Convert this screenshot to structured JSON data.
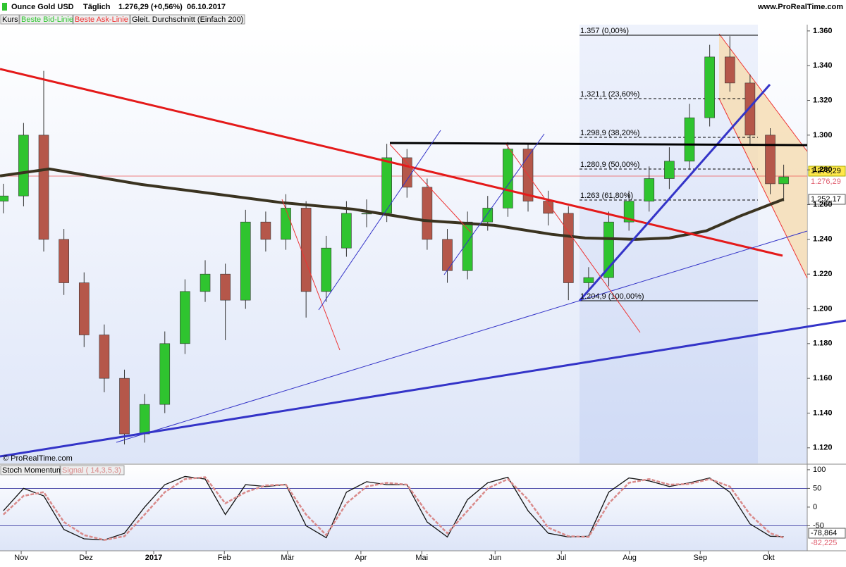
{
  "header": {
    "title": "Ounce Gold USD",
    "period": "Täglich",
    "quote": "1.276,29 (+0,56%)",
    "date": "06.10.2017",
    "site": "www.ProRealTime.com",
    "copyright": "© ProRealTime.com"
  },
  "chart_data": [
    {
      "type": "candlestick",
      "legend": [
        "Kurs",
        "Beste Bid-Linie",
        "Beste Ask-Linie"
      ],
      "xlim": [
        0,
        240
      ],
      "ylim": [
        1.111,
        1.3636
      ],
      "yticks": [
        {
          "value": 1.12,
          "label": "1.120"
        },
        {
          "value": 1.14,
          "label": "1.140"
        },
        {
          "value": 1.16,
          "label": "1.160"
        },
        {
          "value": 1.18,
          "label": "1.180"
        },
        {
          "value": 1.2,
          "label": "1.200"
        },
        {
          "value": 1.22,
          "label": "1.220"
        },
        {
          "value": 1.24,
          "label": "1.240"
        },
        {
          "value": 1.26,
          "label": "1.260"
        },
        {
          "value": 1.28,
          "label": "1.280"
        },
        {
          "value": 1.3,
          "label": "1.300"
        },
        {
          "value": 1.32,
          "label": "1.320"
        },
        {
          "value": 1.34,
          "label": "1.340"
        },
        {
          "value": 1.36,
          "label": "1.360"
        }
      ],
      "up_color": "#2fc42f",
      "down_color": "#b5574a",
      "candles": {
        "x": [
          1,
          7,
          13,
          19,
          25,
          31,
          37,
          43,
          49,
          55,
          61,
          67,
          73,
          79,
          85,
          91,
          97,
          103,
          109,
          115,
          121,
          127,
          133,
          139,
          145,
          151,
          157,
          163,
          169,
          175,
          181,
          187,
          193,
          199,
          205,
          211,
          217,
          223,
          229,
          233
        ],
        "open": [
          1.262,
          1.265,
          1.3,
          1.24,
          1.215,
          1.185,
          1.16,
          1.128,
          1.145,
          1.18,
          1.21,
          1.22,
          1.205,
          1.25,
          1.24,
          1.258,
          1.21,
          1.235,
          1.255,
          1.255,
          1.287,
          1.27,
          1.24,
          1.222,
          1.25,
          1.258,
          1.292,
          1.262,
          1.255,
          1.215,
          1.218,
          1.25,
          1.262,
          1.275,
          1.285,
          1.31,
          1.345,
          1.33,
          1.3,
          1.272
        ],
        "high": [
          1.272,
          1.307,
          1.337,
          1.246,
          1.221,
          1.191,
          1.165,
          1.151,
          1.187,
          1.217,
          1.228,
          1.226,
          1.257,
          1.256,
          1.266,
          1.262,
          1.242,
          1.262,
          1.263,
          1.295,
          1.292,
          1.275,
          1.246,
          1.256,
          1.265,
          1.296,
          1.295,
          1.268,
          1.259,
          1.224,
          1.256,
          1.268,
          1.282,
          1.293,
          1.318,
          1.352,
          1.357,
          1.335,
          1.304,
          1.283
        ],
        "low": [
          1.255,
          1.259,
          1.233,
          1.208,
          1.178,
          1.152,
          1.122,
          1.123,
          1.14,
          1.174,
          1.204,
          1.182,
          1.2,
          1.233,
          1.234,
          1.195,
          1.204,
          1.23,
          1.247,
          1.25,
          1.264,
          1.234,
          1.215,
          1.217,
          1.245,
          1.253,
          1.256,
          1.248,
          1.205,
          1.21,
          1.213,
          1.245,
          1.256,
          1.269,
          1.28,
          1.305,
          1.325,
          1.295,
          1.266,
          1.262
        ],
        "close": [
          1.265,
          1.3,
          1.24,
          1.215,
          1.185,
          1.16,
          1.128,
          1.145,
          1.18,
          1.21,
          1.22,
          1.205,
          1.25,
          1.24,
          1.258,
          1.21,
          1.235,
          1.255,
          1.255,
          1.287,
          1.27,
          1.24,
          1.222,
          1.25,
          1.258,
          1.292,
          1.262,
          1.255,
          1.215,
          1.218,
          1.25,
          1.262,
          1.275,
          1.285,
          1.31,
          1.345,
          1.33,
          1.3,
          1.272,
          1.276
        ]
      },
      "series": [
        {
          "name": "Gleit. Durchschnitt (Einfach 200)",
          "color": "#3a3320",
          "x": [
            0,
            14.7,
            42,
            63,
            84,
            105,
            126,
            147,
            164,
            174,
            189,
            199,
            210,
            220,
            233
          ],
          "values": [
            1.2765,
            1.2805,
            1.2716,
            1.2664,
            1.2611,
            1.2574,
            1.2509,
            1.2481,
            1.2429,
            1.2408,
            1.24,
            1.2408,
            1.2449,
            1.2534,
            1.2631
          ]
        }
      ],
      "annotations": [
        "1.357 (0,00%)",
        "1.321,1 (23,60%)",
        "1.298,9 (38,20%)",
        "1.280,9 (50,00%)",
        "1.263 (61,80%)",
        "1.204,9 (100,00%)"
      ],
      "price_labels": [
        "1.276,29",
        "1.276,29",
        "1.252,17"
      ]
    },
    {
      "type": "line",
      "xlim": [
        0,
        240
      ],
      "ylim": [
        -117,
        113
      ],
      "yticks": [
        100,
        50,
        0,
        -50
      ],
      "xticks": [
        {
          "value": 6.3,
          "label": "Nov"
        },
        {
          "value": 25.6,
          "label": "Dez"
        },
        {
          "value": 45.7,
          "label": "2017"
        },
        {
          "value": 66.7,
          "label": "Feb"
        },
        {
          "value": 85.5,
          "label": "Mär"
        },
        {
          "value": 107.3,
          "label": "Apr"
        },
        {
          "value": 125.4,
          "label": "Mai"
        },
        {
          "value": 147.2,
          "label": "Jun"
        },
        {
          "value": 166.9,
          "label": "Jul"
        },
        {
          "value": 187.2,
          "label": "Aug"
        },
        {
          "value": 208.2,
          "label": "Sep"
        },
        {
          "value": 228.5,
          "label": "Okt"
        }
      ],
      "x": [
        1,
        7,
        13,
        19,
        25,
        31,
        37,
        43,
        49,
        55,
        61,
        67,
        73,
        79,
        85,
        91,
        97,
        103,
        109,
        115,
        121,
        127,
        133,
        139,
        145,
        151,
        157,
        163,
        169,
        175,
        181,
        187,
        193,
        199,
        205,
        211,
        217,
        223,
        229,
        233
      ],
      "series": [
        {
          "name": "Stoch Momentum",
          "color": "#111111",
          "values": [
            -10,
            50,
            30,
            -60,
            -85,
            -88,
            -70,
            0,
            60,
            82,
            75,
            -20,
            60,
            55,
            60,
            -50,
            -82,
            40,
            68,
            60,
            60,
            -40,
            -80,
            20,
            65,
            80,
            -10,
            -70,
            -80,
            -78,
            40,
            78,
            70,
            55,
            65,
            78,
            40,
            -45,
            -78,
            -79
          ]
        },
        {
          "name": "Signal ( 14,3,5,3)",
          "color": "#d98a8a",
          "values": [
            -20,
            30,
            40,
            -40,
            -75,
            -88,
            -78,
            -20,
            40,
            75,
            80,
            10,
            40,
            58,
            60,
            -20,
            -75,
            10,
            55,
            65,
            60,
            -15,
            -70,
            -10,
            50,
            75,
            20,
            -55,
            -78,
            -80,
            10,
            65,
            75,
            60,
            62,
            75,
            55,
            -20,
            -70,
            -82
          ]
        }
      ],
      "price_labels": [
        "-78,864",
        "-82,225"
      ]
    }
  ]
}
